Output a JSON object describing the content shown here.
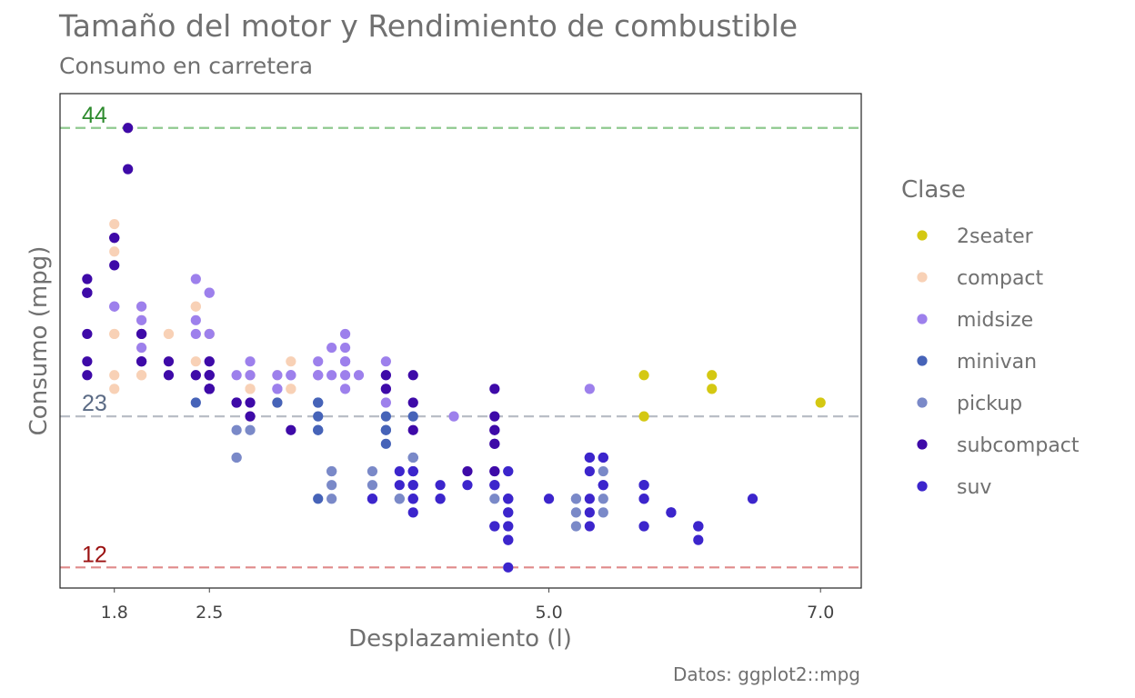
{
  "chart_data": {
    "type": "scatter",
    "title": "Tamaño del motor y Rendimiento de combustible",
    "subtitle": "Consumo en carretera",
    "xlabel": "Desplazamiento (l)",
    "ylabel": "Consumo (mpg)",
    "caption": "Datos: ggplot2::mpg",
    "xlim": [
      1.4,
      7.3
    ],
    "ylim": [
      10.5,
      46.5
    ],
    "xticks": [
      1.8,
      2.5,
      5.0,
      7.0
    ],
    "xtick_labels": [
      "1.8",
      "2.5",
      "5.0",
      "7.0"
    ],
    "grid": false,
    "legend": {
      "title": "Clase",
      "position": "right",
      "entries": [
        {
          "name": "2seater",
          "color": "#d4c812"
        },
        {
          "name": "compact",
          "color": "#f8d1b6"
        },
        {
          "name": "midsize",
          "color": "#9d80ec"
        },
        {
          "name": "minivan",
          "color": "#4663b8"
        },
        {
          "name": "pickup",
          "color": "#7a89c8"
        },
        {
          "name": "subcompact",
          "color": "#3e0aa8"
        },
        {
          "name": "suv",
          "color": "#3c25cc"
        }
      ]
    },
    "reference_lines": [
      {
        "y": 44,
        "label": "44",
        "color": "#2d8a2d",
        "line_color": "#8fc98f"
      },
      {
        "y": 23,
        "label": "23",
        "color": "#5b6b85",
        "line_color": "#b9bec6"
      },
      {
        "y": 12,
        "label": "12",
        "color": "#9b1111",
        "line_color": "#e08a8a"
      }
    ],
    "series": [
      {
        "name": "2seater",
        "points": [
          [
            5.7,
            26
          ],
          [
            5.7,
            23
          ],
          [
            6.2,
            26
          ],
          [
            6.2,
            25
          ],
          [
            7.0,
            24
          ]
        ]
      },
      {
        "name": "compact",
        "points": [
          [
            1.8,
            29
          ],
          [
            1.8,
            29
          ],
          [
            2.0,
            31
          ],
          [
            2.0,
            30
          ],
          [
            2.8,
            26
          ],
          [
            2.8,
            26
          ],
          [
            3.1,
            27
          ],
          [
            1.8,
            26
          ],
          [
            1.8,
            25
          ],
          [
            2.0,
            28
          ],
          [
            2.8,
            25
          ],
          [
            2.8,
            25
          ],
          [
            3.1,
            25
          ],
          [
            3.1,
            25
          ],
          [
            2.2,
            27
          ],
          [
            2.2,
            29
          ],
          [
            2.4,
            31
          ],
          [
            2.4,
            31
          ],
          [
            3.0,
            26
          ],
          [
            1.8,
            36
          ],
          [
            1.8,
            36
          ],
          [
            1.9,
            44
          ],
          [
            2.0,
            29
          ],
          [
            2.0,
            26
          ],
          [
            2.5,
            29
          ],
          [
            2.5,
            29
          ],
          [
            2.8,
            23
          ],
          [
            3.3,
            26
          ],
          [
            1.8,
            35
          ],
          [
            1.8,
            37
          ],
          [
            2.0,
            29
          ],
          [
            2.5,
            26
          ],
          [
            2.2,
            29
          ],
          [
            2.4,
            27
          ],
          [
            3.0,
            24
          ],
          [
            3.0,
            24
          ],
          [
            2.5,
            27
          ],
          [
            2.5,
            29
          ],
          [
            2.5,
            25
          ],
          [
            1.9,
            44
          ],
          [
            2.0,
            26
          ],
          [
            2.5,
            26
          ],
          [
            2.5,
            29
          ]
        ]
      },
      {
        "name": "midsize",
        "points": [
          [
            2.8,
            26
          ],
          [
            2.4,
            30
          ],
          [
            2.4,
            33
          ],
          [
            2.5,
            32
          ],
          [
            2.5,
            32
          ],
          [
            3.5,
            27
          ],
          [
            3.5,
            26
          ],
          [
            3.8,
            24
          ],
          [
            3.1,
            26
          ],
          [
            3.8,
            27
          ],
          [
            3.8,
            25
          ],
          [
            3.0,
            25
          ],
          [
            3.0,
            25
          ],
          [
            3.3,
            26
          ],
          [
            3.3,
            26
          ],
          [
            4.3,
            23
          ],
          [
            1.8,
            31
          ],
          [
            2.4,
            26
          ],
          [
            2.5,
            27
          ],
          [
            2.5,
            26
          ],
          [
            3.5,
            28
          ],
          [
            3.5,
            25
          ],
          [
            3.6,
            26
          ],
          [
            5.3,
            25
          ],
          [
            2.0,
            31
          ],
          [
            2.0,
            30
          ],
          [
            2.7,
            26
          ],
          [
            3.4,
            28
          ],
          [
            3.5,
            27
          ],
          [
            3.8,
            26
          ],
          [
            2.5,
            27
          ],
          [
            2.8,
            27
          ],
          [
            3.0,
            26
          ],
          [
            3.3,
            27
          ],
          [
            3.1,
            26
          ],
          [
            2.4,
            29
          ],
          [
            2.5,
            29
          ],
          [
            1.8,
            31
          ],
          [
            2.0,
            28
          ],
          [
            3.4,
            26
          ],
          [
            3.5,
            29
          ]
        ]
      },
      {
        "name": "minivan",
        "points": [
          [
            2.4,
            24
          ],
          [
            3.0,
            24
          ],
          [
            3.3,
            22
          ],
          [
            3.3,
            22
          ],
          [
            3.3,
            24
          ],
          [
            3.3,
            24
          ],
          [
            3.3,
            17
          ],
          [
            3.8,
            22
          ],
          [
            3.8,
            21
          ],
          [
            3.8,
            23
          ],
          [
            4.0,
            23
          ],
          [
            3.3,
            23
          ],
          [
            3.8,
            22
          ],
          [
            4.0,
            20
          ]
        ]
      },
      {
        "name": "pickup",
        "points": [
          [
            3.7,
            19
          ],
          [
            3.7,
            18
          ],
          [
            3.9,
            17
          ],
          [
            3.9,
            17
          ],
          [
            4.7,
            19
          ],
          [
            4.7,
            15
          ],
          [
            4.7,
            17
          ],
          [
            5.2,
            17
          ],
          [
            5.2,
            15
          ],
          [
            5.7,
            15
          ],
          [
            5.9,
            16
          ],
          [
            4.7,
            16
          ],
          [
            4.7,
            16
          ],
          [
            4.7,
            17
          ],
          [
            5.2,
            16
          ],
          [
            5.2,
            17
          ],
          [
            3.4,
            17
          ],
          [
            3.4,
            19
          ],
          [
            4.0,
            17
          ],
          [
            4.0,
            20
          ],
          [
            4.0,
            19
          ],
          [
            4.0,
            20
          ],
          [
            4.6,
            17
          ],
          [
            5.4,
            17
          ],
          [
            5.4,
            16
          ],
          [
            5.4,
            19
          ],
          [
            2.7,
            20
          ],
          [
            2.7,
            20
          ],
          [
            2.7,
            22
          ],
          [
            3.4,
            18
          ],
          [
            3.4,
            19
          ],
          [
            4.0,
            19
          ],
          [
            2.8,
            22
          ]
        ]
      },
      {
        "name": "subcompact",
        "points": [
          [
            3.8,
            26
          ],
          [
            3.8,
            25
          ],
          [
            4.0,
            26
          ],
          [
            4.0,
            24
          ],
          [
            4.6,
            21
          ],
          [
            4.6,
            22
          ],
          [
            4.6,
            23
          ],
          [
            4.6,
            22
          ],
          [
            5.4,
            20
          ],
          [
            1.6,
            33
          ],
          [
            1.6,
            32
          ],
          [
            1.6,
            32
          ],
          [
            1.6,
            29
          ],
          [
            1.6,
            32
          ],
          [
            1.8,
            34
          ],
          [
            1.8,
            36
          ],
          [
            1.8,
            36
          ],
          [
            2.0,
            29
          ],
          [
            1.6,
            26
          ],
          [
            1.6,
            27
          ],
          [
            2.0,
            27
          ],
          [
            2.0,
            27
          ],
          [
            2.4,
            26
          ],
          [
            2.5,
            25
          ],
          [
            2.5,
            25
          ],
          [
            2.5,
            26
          ],
          [
            2.5,
            25
          ],
          [
            2.5,
            27
          ],
          [
            2.0,
            29
          ],
          [
            2.2,
            26
          ],
          [
            2.8,
            24
          ],
          [
            3.1,
            22
          ],
          [
            4.6,
            21
          ],
          [
            4.4,
            19
          ],
          [
            4.0,
            18
          ],
          [
            4.6,
            18
          ],
          [
            4.0,
            22
          ],
          [
            4.6,
            19
          ],
          [
            4.6,
            19
          ],
          [
            2.8,
            23
          ],
          [
            2.2,
            27
          ],
          [
            2.5,
            25
          ],
          [
            2.5,
            26
          ],
          [
            2.7,
            24
          ],
          [
            2.7,
            24
          ],
          [
            1.9,
            41
          ],
          [
            1.9,
            44
          ],
          [
            2.5,
            25
          ],
          [
            4.6,
            25
          ]
        ]
      },
      {
        "name": "suv",
        "points": [
          [
            5.7,
            17
          ],
          [
            5.7,
            18
          ],
          [
            6.1,
            15
          ],
          [
            5.3,
            16
          ],
          [
            5.3,
            15
          ],
          [
            5.3,
            17
          ],
          [
            5.3,
            20
          ],
          [
            5.7,
            17
          ],
          [
            6.5,
            17
          ],
          [
            5.3,
            19
          ],
          [
            5.3,
            20
          ],
          [
            5.7,
            15
          ],
          [
            5.9,
            16
          ],
          [
            5.9,
            16
          ],
          [
            4.7,
            12
          ],
          [
            4.7,
            17
          ],
          [
            4.7,
            17
          ],
          [
            5.7,
            18
          ],
          [
            6.1,
            14
          ],
          [
            4.0,
            19
          ],
          [
            4.0,
            17
          ],
          [
            4.0,
            18
          ],
          [
            4.2,
            18
          ],
          [
            4.6,
            15
          ],
          [
            5.0,
            17
          ],
          [
            5.4,
            18
          ],
          [
            4.7,
            16
          ],
          [
            5.7,
            18
          ],
          [
            4.7,
            15
          ],
          [
            4.7,
            14
          ],
          [
            4.0,
            17
          ],
          [
            4.6,
            18
          ],
          [
            3.7,
            17
          ],
          [
            4.4,
            18
          ],
          [
            4.2,
            17
          ],
          [
            4.2,
            17
          ],
          [
            3.9,
            19
          ],
          [
            3.9,
            18
          ],
          [
            4.7,
            19
          ],
          [
            5.4,
            18
          ],
          [
            5.4,
            20
          ],
          [
            4.0,
            19
          ],
          [
            4.6,
            15
          ],
          [
            6.1,
            15
          ],
          [
            6.1,
            15
          ],
          [
            3.7,
            17
          ],
          [
            4.7,
            14
          ],
          [
            4.0,
            16
          ]
        ]
      }
    ]
  }
}
